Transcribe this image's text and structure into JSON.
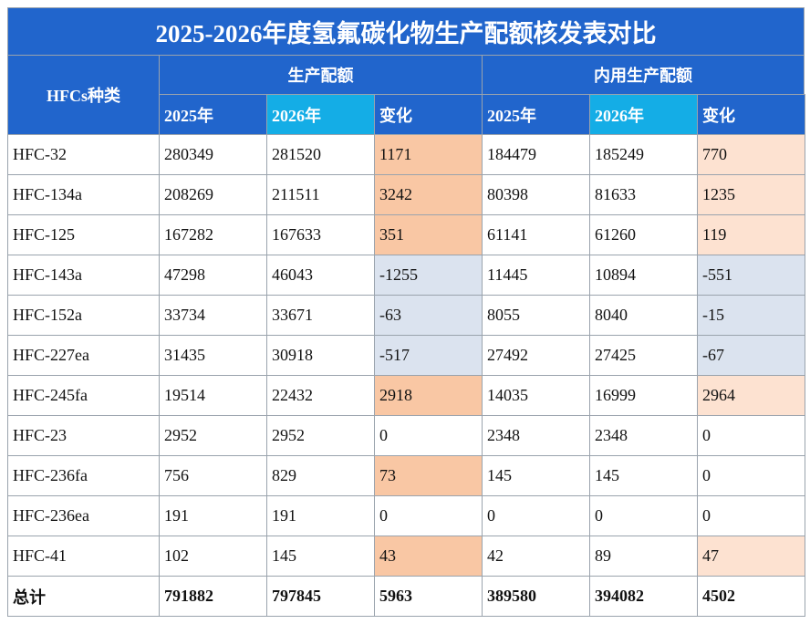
{
  "table": {
    "title": "2025-2026年度氢氟碳化物生产配额核发表对比",
    "type_label": "HFCs种类",
    "groups": [
      "生产配额",
      "内用生产配额"
    ],
    "subheaders": [
      "2025年",
      "2026年",
      "变化",
      "2025年",
      "2026年",
      "变化"
    ],
    "rows": [
      [
        "HFC-32",
        280349,
        281520,
        1171,
        184479,
        185249,
        770
      ],
      [
        "HFC-134a",
        208269,
        211511,
        3242,
        80398,
        81633,
        1235
      ],
      [
        "HFC-125",
        167282,
        167633,
        351,
        61141,
        61260,
        119
      ],
      [
        "HFC-143a",
        47298,
        46043,
        -1255,
        11445,
        10894,
        -551
      ],
      [
        "HFC-152a",
        33734,
        33671,
        -63,
        8055,
        8040,
        -15
      ],
      [
        "HFC-227ea",
        31435,
        30918,
        -517,
        27492,
        27425,
        -67
      ],
      [
        "HFC-245fa",
        19514,
        22432,
        2918,
        14035,
        16999,
        2964
      ],
      [
        "HFC-23",
        2952,
        2952,
        0,
        2348,
        2348,
        0
      ],
      [
        "HFC-236fa",
        756,
        829,
        73,
        145,
        145,
        0
      ],
      [
        "HFC-236ea",
        191,
        191,
        0,
        0,
        0,
        0
      ],
      [
        "HFC-41",
        102,
        145,
        43,
        42,
        89,
        47
      ],
      [
        "总计",
        791882,
        797845,
        5963,
        389580,
        394082,
        4502
      ]
    ]
  }
}
